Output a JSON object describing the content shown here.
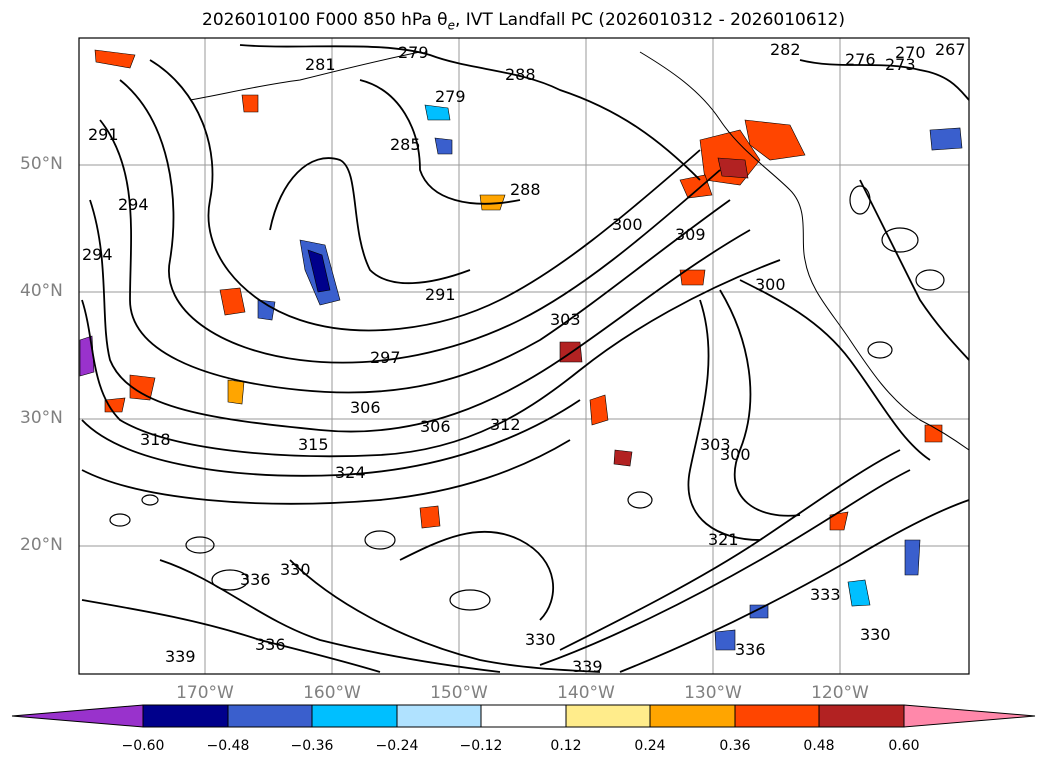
{
  "title_text": "2026010100 F000 850 hPa θ",
  "title_sub": "e",
  "title_rest": ", IVT Landfall PC (2026010312 - 2026010612)",
  "lat_labels": [
    "50°N",
    "40°N",
    "30°N",
    "20°N"
  ],
  "lon_labels": [
    "170°W",
    "160°W",
    "150°W",
    "140°W",
    "130°W",
    "120°W"
  ],
  "contour_labels": [
    "279",
    "281",
    "288",
    "279",
    "285",
    "282",
    "276",
    "273",
    "270",
    "267",
    "291",
    "294",
    "294",
    "288",
    "300",
    "309",
    "300",
    "291",
    "297",
    "303",
    "306",
    "306",
    "312",
    "315",
    "318",
    "324",
    "303",
    "300",
    "321",
    "330",
    "336",
    "339",
    "336",
    "339",
    "333",
    "330",
    "336",
    "330"
  ],
  "colorbar": {
    "ticks": [
      "−0.60",
      "−0.48",
      "−0.36",
      "−0.24",
      "−0.12",
      "0.12",
      "0.24",
      "0.36",
      "0.48",
      "0.60"
    ],
    "colors": [
      "#9932cc",
      "#00008b",
      "#3a5fcd",
      "#00bfff",
      "#b0e2ff",
      "#ffffff",
      "#ffec8b",
      "#ffa500",
      "#ff4500",
      "#b22222",
      "#ff88aa"
    ]
  }
}
